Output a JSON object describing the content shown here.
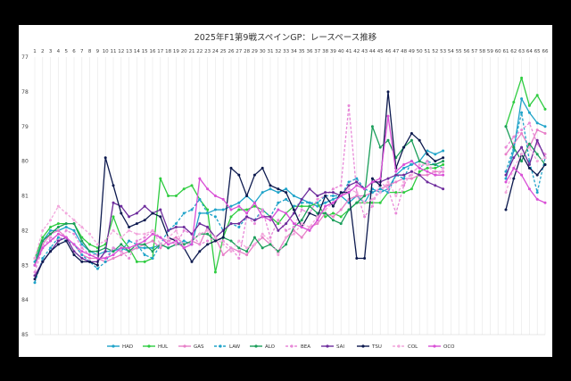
{
  "chart_data": {
    "type": "line",
    "title": "2025年F1第9戦スペインGP：レースペース推移",
    "xlabel": "",
    "ylabel": "",
    "x_ticks": [
      1,
      2,
      3,
      4,
      5,
      6,
      7,
      8,
      9,
      10,
      11,
      12,
      13,
      14,
      15,
      16,
      17,
      18,
      19,
      20,
      21,
      22,
      23,
      24,
      25,
      26,
      27,
      28,
      29,
      30,
      31,
      32,
      33,
      34,
      35,
      36,
      37,
      38,
      39,
      40,
      41,
      42,
      43,
      44,
      45,
      46,
      47,
      48,
      49,
      50,
      51,
      52,
      53,
      54,
      55,
      56,
      57,
      58,
      59,
      60,
      61,
      62,
      63,
      64,
      65,
      66
    ],
    "y_ticks": [
      77,
      78,
      79,
      80,
      81,
      82,
      83,
      84,
      85
    ],
    "ylim": [
      77,
      85
    ],
    "y_inverted": true,
    "grid": "vertical",
    "legend": "bottom",
    "series": [
      {
        "name": "HAD",
        "color": "#1fa3c9",
        "dashed": false,
        "values": [
          82.9,
          82.3,
          82.0,
          82.0,
          81.9,
          82.0,
          82.4,
          82.6,
          82.7,
          82.6,
          82.6,
          82.5,
          82.6,
          82.5,
          82.5,
          82.5,
          82.4,
          82.5,
          82.4,
          82.3,
          82.4,
          81.5,
          81.5,
          81.4,
          81.4,
          81.3,
          81.2,
          81.0,
          81.2,
          80.9,
          80.8,
          80.9,
          80.8,
          81.0,
          81.1,
          81.2,
          81.3,
          81.2,
          81.1,
          81.0,
          81.2,
          81.0,
          81.2,
          80.8,
          80.9,
          80.8,
          80.4,
          80.2,
          80.1,
          80.0,
          79.7,
          79.8,
          79.7,
          null,
          null,
          null,
          null,
          null,
          null,
          null,
          80.5,
          79.7,
          78.2,
          78.6,
          78.9,
          79.0
        ]
      },
      {
        "name": "HUL",
        "color": "#2ecc40",
        "dashed": false,
        "values": [
          82.8,
          82.2,
          81.9,
          81.8,
          81.8,
          81.8,
          82.2,
          82.4,
          82.5,
          82.4,
          81.6,
          82.2,
          82.5,
          82.9,
          82.9,
          82.8,
          80.5,
          81.0,
          81.0,
          80.8,
          80.7,
          81.1,
          81.4,
          83.2,
          82.2,
          81.6,
          81.4,
          81.4,
          81.3,
          81.4,
          81.6,
          81.8,
          81.5,
          81.3,
          81.3,
          81.3,
          81.2,
          81.6,
          81.5,
          81.6,
          81.4,
          81.2,
          81.2,
          81.2,
          81.2,
          80.9,
          80.9,
          80.9,
          80.8,
          80.3,
          80.2,
          80.2,
          80.1,
          null,
          null,
          null,
          null,
          null,
          null,
          null,
          79.0,
          78.3,
          77.6,
          78.4,
          78.1,
          78.5
        ]
      },
      {
        "name": "GAS",
        "color": "#e77fc8",
        "dashed": false,
        "values": [
          83.0,
          82.4,
          82.1,
          82.0,
          82.2,
          82.4,
          82.7,
          82.8,
          82.8,
          82.9,
          82.8,
          82.7,
          82.6,
          82.5,
          82.4,
          82.3,
          82.5,
          82.3,
          82.2,
          82.4,
          82.3,
          82.4,
          81.9,
          82.2,
          82.7,
          82.5,
          82.6,
          82.7,
          82.4,
          82.2,
          82.4,
          82.6,
          82.2,
          82.0,
          82.2,
          81.9,
          81.8,
          81.5,
          81.6,
          81.4,
          81.1,
          81.0,
          81.0,
          80.9,
          80.8,
          80.7,
          80.6,
          80.5,
          80.5,
          80.4,
          80.4,
          80.3,
          80.3,
          null,
          null,
          null,
          null,
          null,
          null,
          null,
          79.8,
          79.5,
          79.2,
          79.6,
          79.1,
          79.2
        ]
      },
      {
        "name": "LAW",
        "color": "#1fa3c9",
        "dashed": true,
        "values": [
          83.5,
          82.8,
          82.5,
          82.2,
          82.3,
          82.4,
          82.7,
          82.9,
          83.1,
          82.9,
          82.5,
          82.6,
          82.3,
          82.4,
          82.7,
          82.8,
          82.4,
          82.0,
          81.8,
          81.5,
          81.4,
          81.1,
          81.5,
          81.6,
          82.0,
          81.8,
          81.9,
          81.6,
          81.7,
          81.4,
          81.6,
          81.2,
          81.1,
          81.3,
          81.2,
          81.2,
          81.2,
          81.0,
          81.0,
          81.0,
          80.6,
          80.5,
          80.8,
          80.9,
          80.8,
          80.9,
          80.4,
          80.5,
          80.0,
          80.2,
          80.0,
          80.1,
          80.2,
          null,
          null,
          null,
          null,
          null,
          null,
          null,
          80.3,
          79.6,
          78.6,
          80.0,
          80.9,
          79.9
        ]
      },
      {
        "name": "ALO",
        "color": "#1b9e5a",
        "dashed": false,
        "values": [
          83.0,
          82.3,
          82.1,
          81.9,
          81.8,
          81.8,
          82.3,
          82.6,
          82.6,
          82.5,
          82.6,
          82.4,
          82.6,
          82.4,
          82.4,
          82.6,
          82.4,
          82.5,
          82.4,
          82.4,
          82.3,
          82.1,
          82.1,
          82.3,
          82.2,
          82.3,
          82.5,
          82.6,
          82.2,
          82.5,
          82.4,
          82.6,
          82.4,
          81.9,
          81.7,
          81.3,
          81.5,
          81.5,
          81.7,
          81.8,
          81.4,
          81.2,
          81.0,
          79.0,
          79.6,
          79.4,
          79.9,
          79.6,
          79.4,
          80.0,
          80.1,
          80.1,
          80.0,
          null,
          null,
          null,
          null,
          null,
          null,
          null,
          79.0,
          79.6,
          80.0,
          79.5,
          79.8,
          80.1
        ]
      },
      {
        "name": "BEA",
        "color": "#e888d8",
        "dashed": true,
        "values": [
          83.2,
          82.5,
          82.2,
          82.3,
          82.0,
          82.1,
          82.5,
          82.7,
          82.7,
          82.8,
          82.5,
          82.6,
          82.8,
          82.3,
          82.2,
          82.0,
          82.2,
          82.3,
          82.4,
          82.0,
          82.1,
          82.4,
          82.3,
          82.2,
          82.3,
          82.5,
          82.8,
          81.6,
          81.8,
          81.4,
          82.2,
          81.7,
          82.0,
          81.9,
          81.4,
          81.5,
          81.1,
          81.0,
          80.8,
          80.7,
          78.4,
          80.9,
          81.6,
          81.3,
          80.6,
          80.8,
          81.5,
          80.7,
          80.3,
          80.2,
          80.0,
          80.4,
          80.3,
          null,
          null,
          null,
          null,
          null,
          null,
          null,
          79.6,
          79.3,
          79.1,
          78.9,
          79.5,
          79.8
        ]
      },
      {
        "name": "SAI",
        "color": "#6d2c9c",
        "dashed": false,
        "values": [
          83.3,
          82.9,
          82.6,
          82.3,
          82.2,
          82.6,
          82.8,
          82.9,
          82.9,
          82.6,
          81.2,
          81.3,
          81.6,
          81.5,
          81.3,
          81.5,
          81.4,
          82.0,
          81.9,
          81.9,
          82.1,
          81.8,
          81.9,
          82.2,
          82.0,
          81.8,
          81.8,
          81.6,
          81.7,
          81.6,
          81.6,
          82.0,
          81.8,
          81.5,
          81.1,
          80.8,
          81.0,
          80.9,
          80.9,
          81.0,
          80.7,
          80.6,
          80.8,
          80.6,
          80.6,
          80.5,
          80.4,
          80.4,
          80.3,
          80.4,
          80.6,
          80.7,
          80.8,
          null,
          null,
          null,
          null,
          null,
          null,
          null,
          80.4,
          79.9,
          79.6,
          80.1,
          79.4,
          79.9
        ]
      },
      {
        "name": "TSU",
        "color": "#0d1a4f",
        "dashed": false,
        "values": [
          83.4,
          82.9,
          82.6,
          82.4,
          82.3,
          82.7,
          82.9,
          82.9,
          83.0,
          79.9,
          80.7,
          81.5,
          81.9,
          81.8,
          81.7,
          81.5,
          81.6,
          82.2,
          82.3,
          82.5,
          82.9,
          82.6,
          82.4,
          82.3,
          82.2,
          80.2,
          80.4,
          81.0,
          80.4,
          80.2,
          80.7,
          80.8,
          80.9,
          81.4,
          81.9,
          81.5,
          81.6,
          81.0,
          81.3,
          80.9,
          80.9,
          82.8,
          82.8,
          80.5,
          80.7,
          78.0,
          80.2,
          79.6,
          79.2,
          79.4,
          79.8,
          80.0,
          79.9,
          null,
          null,
          null,
          null,
          null,
          null,
          null,
          81.4,
          80.5,
          79.8,
          80.2,
          80.4,
          80.1
        ]
      },
      {
        "name": "COL",
        "color": "#f2a7dc",
        "dashed": true,
        "values": [
          82.8,
          82.0,
          81.7,
          81.3,
          81.5,
          81.7,
          81.9,
          82.1,
          82.4,
          82.3,
          82.0,
          82.2,
          82.0,
          82.1,
          82.1,
          82.0,
          82.4,
          82.2,
          82.0,
          82.5,
          82.3,
          82.1,
          82.0,
          82.2,
          82.4,
          82.6,
          82.3,
          82.5,
          82.4,
          82.1,
          82.3,
          82.7,
          82.2,
          82.1,
          81.8,
          81.9,
          81.6,
          81.4,
          81.2,
          81.0,
          80.8,
          80.9,
          81.2,
          81.1,
          80.9,
          80.6,
          81.0,
          80.6,
          80.4,
          80.1,
          80.1,
          80.4,
          80.2,
          null,
          null,
          null,
          null,
          null,
          null,
          null,
          80.9,
          80.2,
          79.8,
          79.6,
          80.0,
          79.9
        ]
      },
      {
        "name": "OCO",
        "color": "#d94fd6",
        "dashed": false,
        "values": [
          83.0,
          82.5,
          82.3,
          82.1,
          82.2,
          82.4,
          82.6,
          82.7,
          82.8,
          82.8,
          82.7,
          82.5,
          82.5,
          82.4,
          82.3,
          82.1,
          82.2,
          82.4,
          82.3,
          82.5,
          82.4,
          80.5,
          80.8,
          81.0,
          81.1,
          81.4,
          81.3,
          81.5,
          81.2,
          81.6,
          81.7,
          81.4,
          81.5,
          81.8,
          81.9,
          82.0,
          81.7,
          81.3,
          81.2,
          81.0,
          80.9,
          80.7,
          80.8,
          80.6,
          80.5,
          78.7,
          80.3,
          80.1,
          80.0,
          80.2,
          80.3,
          80.4,
          80.4,
          null,
          null,
          null,
          null,
          null,
          null,
          null,
          80.6,
          80.2,
          80.4,
          80.8,
          81.1,
          81.2
        ]
      }
    ]
  }
}
